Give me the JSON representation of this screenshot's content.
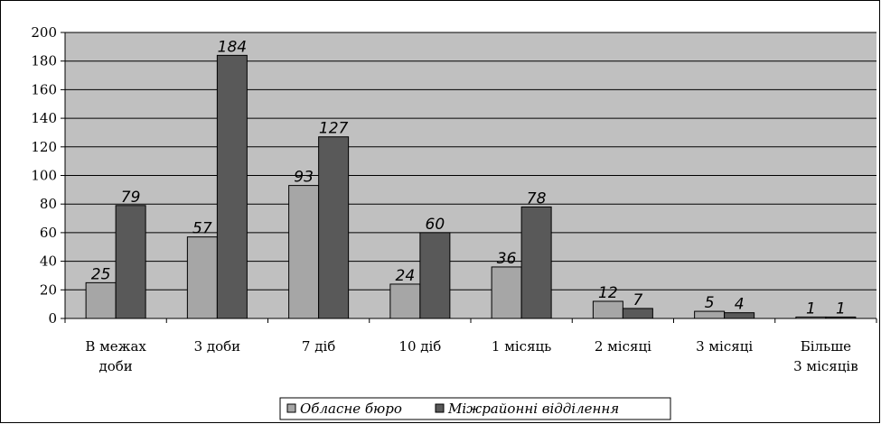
{
  "chart_data": {
    "type": "bar",
    "title": "",
    "xlabel": "",
    "ylabel": "",
    "categories": [
      [
        "В межах",
        "доби"
      ],
      [
        "3 доби"
      ],
      [
        "7 діб"
      ],
      [
        "10  діб"
      ],
      [
        "1 місяць"
      ],
      [
        "2 місяці"
      ],
      [
        "3 місяці"
      ],
      [
        "Більше",
        "3 місяців"
      ]
    ],
    "series": [
      {
        "name": "Обласне бюро",
        "values": [
          25,
          57,
          93,
          24,
          36,
          12,
          5,
          1
        ],
        "color": "#a6a6a6"
      },
      {
        "name": "Міжрайонні відділення",
        "values": [
          79,
          184,
          127,
          60,
          78,
          7,
          4,
          1
        ],
        "color": "#595959"
      }
    ],
    "ylim": [
      0,
      200
    ],
    "yticks": [
      0,
      20,
      40,
      60,
      80,
      100,
      120,
      140,
      160,
      180,
      200
    ],
    "grid": true,
    "plot_background": "#c0c0c0",
    "legend_position": "bottom-center"
  }
}
